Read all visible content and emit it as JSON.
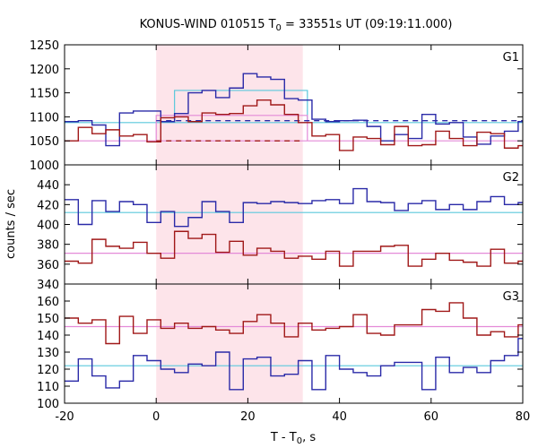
{
  "chart_data": {
    "type": "line",
    "title_main": "KONUS-WIND 010515 T",
    "title_sub": "0",
    "title_rest": " = 33551s UT (09:19:11.000)",
    "xlabel_main": "T - T",
    "xlabel_sub": "0",
    "xlabel_rest": ", s",
    "ylabel": "counts / sec",
    "xlim": [
      -20,
      80
    ],
    "xticks": [
      -20,
      0,
      20,
      40,
      60,
      80
    ],
    "highlight_interval": [
      0,
      32
    ],
    "colors": {
      "blue": "#2a2aa8",
      "red": "#a01818",
      "cyan": "#5ac8dc",
      "pink": "#e48ad8",
      "highlight": "#fde4ea"
    },
    "panels": [
      {
        "label": "G1",
        "ylim": [
          1000,
          1250
        ],
        "yticks": [
          1000,
          1050,
          1100,
          1150,
          1200,
          1250
        ],
        "series": [
          {
            "color": "blue",
            "bin_width": 3,
            "x_start": -20,
            "values": [
              1090,
              1092,
              1083,
              1040,
              1108,
              1112,
              1112,
              1090,
              1107,
              1150,
              1155,
              1140,
              1160,
              1190,
              1183,
              1178,
              1138,
              1135,
              1095,
              1090,
              1092,
              1093,
              1080,
              1050,
              1063,
              1055,
              1105,
              1085,
              1088,
              1058,
              1043,
              1060,
              1070,
              1090
            ]
          },
          {
            "color": "red",
            "bin_width": 3,
            "x_start": -20,
            "values": [
              1050,
              1078,
              1065,
              1073,
              1060,
              1063,
              1048,
              1098,
              1100,
              1090,
              1108,
              1105,
              1107,
              1123,
              1135,
              1125,
              1105,
              1088,
              1060,
              1063,
              1030,
              1058,
              1055,
              1042,
              1080,
              1040,
              1042,
              1070,
              1055,
              1040,
              1068,
              1065,
              1035,
              1040
            ]
          }
        ],
        "background_levels": [
          {
            "color": "cyan",
            "value": 1088,
            "x_from": -20,
            "x_to": 80
          },
          {
            "color": "pink",
            "value": 1050,
            "x_from": -20,
            "x_to": 80
          }
        ],
        "source_levels": [
          {
            "color": "cyan",
            "value": 1155,
            "x_from": 4,
            "x_to": 33
          },
          {
            "color": "pink",
            "value": 1103,
            "x_from": 0,
            "x_to": 33
          }
        ],
        "dashed_levels": [
          {
            "color": "blue",
            "value": 1092,
            "x_from": 0,
            "x_to": 80
          },
          {
            "color": "red",
            "value": 1050,
            "x_from": 0,
            "x_to": 32
          }
        ]
      },
      {
        "label": "G2",
        "ylim": [
          340,
          460
        ],
        "yticks": [
          340,
          360,
          380,
          400,
          420,
          440
        ],
        "series": [
          {
            "color": "blue",
            "bin_width": 3,
            "x_start": -20,
            "values": [
              425,
              400,
              424,
              413,
              423,
              420,
              402,
              413,
              398,
              407,
              423,
              413,
              402,
              422,
              421,
              423,
              422,
              421,
              424,
              425,
              421,
              436,
              423,
              422,
              414,
              421,
              424,
              415,
              420,
              415,
              423,
              428,
              420,
              422
            ]
          },
          {
            "color": "red",
            "bin_width": 3,
            "x_start": -20,
            "values": [
              363,
              361,
              385,
              378,
              376,
              382,
              371,
              366,
              393,
              386,
              390,
              372,
              383,
              369,
              376,
              373,
              366,
              368,
              365,
              373,
              358,
              373,
              373,
              378,
              379,
              358,
              365,
              371,
              364,
              362,
              358,
              375,
              361,
              363
            ]
          }
        ],
        "background_levels": [
          {
            "color": "cyan",
            "value": 412,
            "x_from": -20,
            "x_to": 80
          },
          {
            "color": "pink",
            "value": 371,
            "x_from": -20,
            "x_to": 80
          }
        ]
      },
      {
        "label": "G3",
        "ylim": [
          100,
          170
        ],
        "yticks": [
          100,
          110,
          120,
          130,
          140,
          150,
          160
        ],
        "series": [
          {
            "color": "blue",
            "bin_width": 3,
            "x_start": -20,
            "values": [
              113,
              126,
              116,
              109,
              113,
              128,
              125,
              120,
              118,
              123,
              122,
              130,
              108,
              126,
              127,
              116,
              117,
              125,
              108,
              128,
              120,
              118,
              116,
              122,
              124,
              124,
              108,
              127,
              118,
              121,
              118,
              125,
              128,
              138
            ]
          },
          {
            "color": "red",
            "bin_width": 3,
            "x_start": -20,
            "values": [
              150,
              147,
              149,
              135,
              151,
              141,
              149,
              144,
              147,
              144,
              145,
              143,
              141,
              148,
              152,
              147,
              139,
              147,
              143,
              144,
              145,
              152,
              141,
              140,
              146,
              146,
              155,
              154,
              159,
              150,
              140,
              142,
              139,
              146
            ]
          }
        ],
        "background_levels": [
          {
            "color": "cyan",
            "value": 122,
            "x_from": -20,
            "x_to": 80
          },
          {
            "color": "pink",
            "value": 145,
            "x_from": -20,
            "x_to": 80
          }
        ]
      }
    ]
  }
}
